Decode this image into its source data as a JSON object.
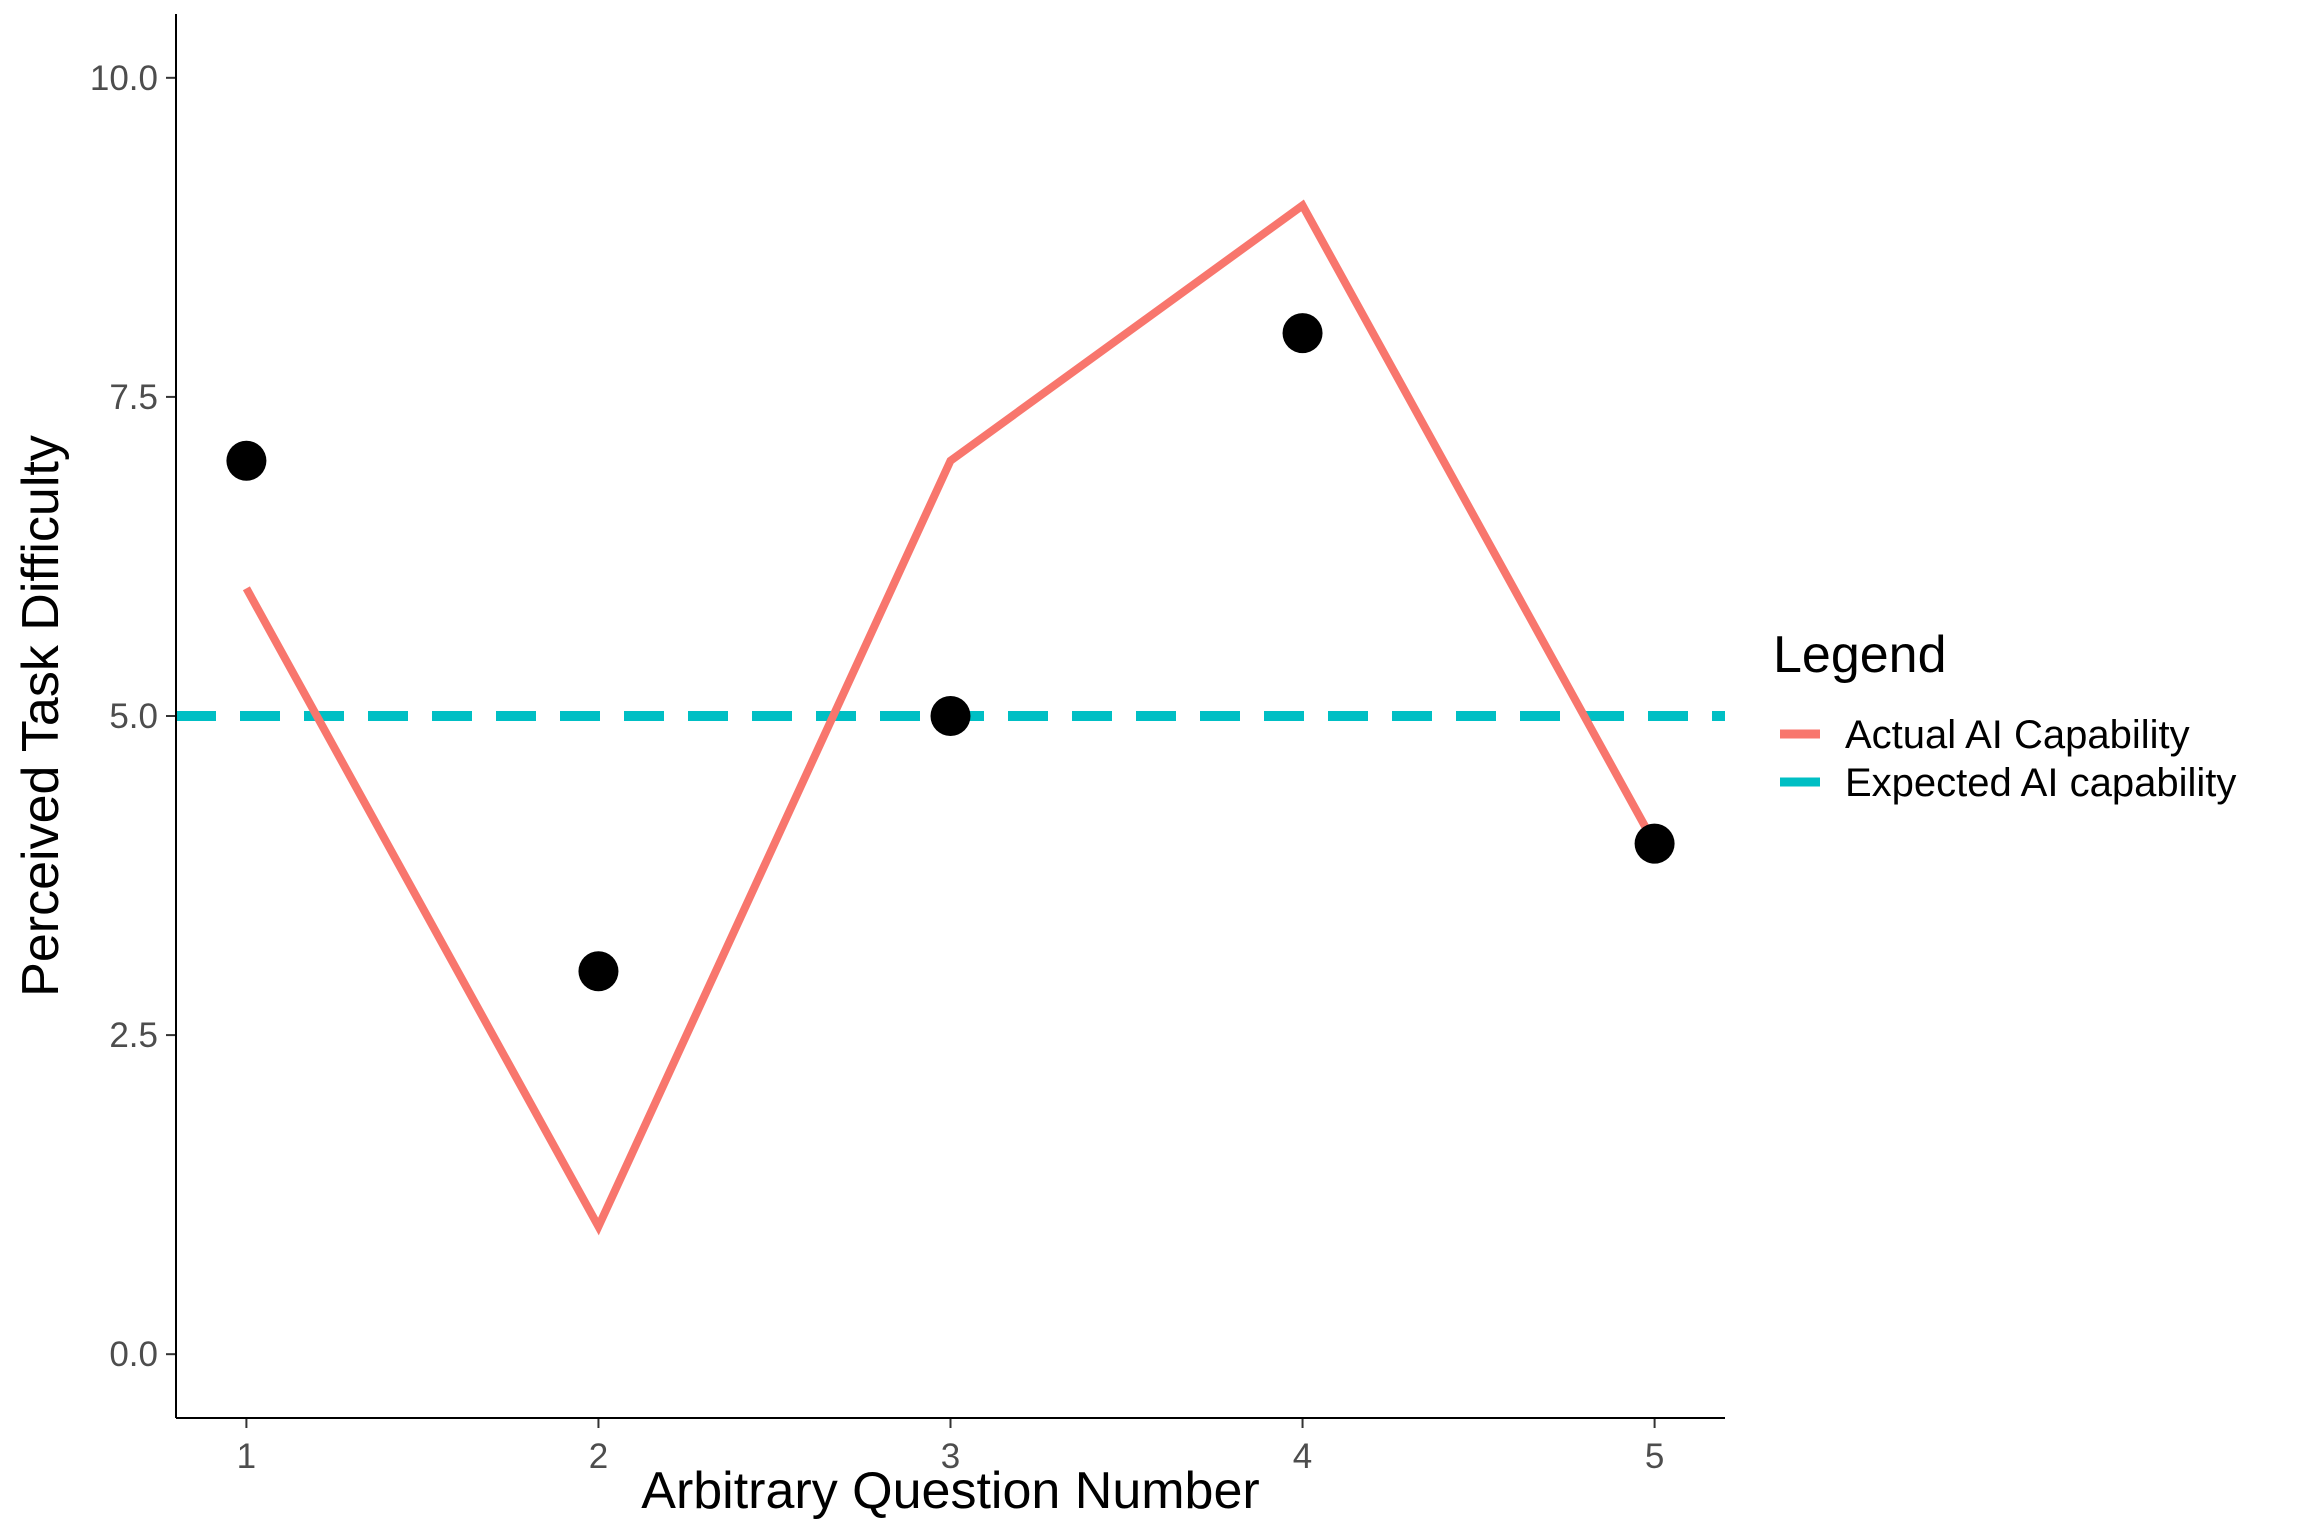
{
  "chart_data": {
    "type": "line",
    "x": [
      1,
      2,
      3,
      4,
      5
    ],
    "series": [
      {
        "name": "Actual AI Capability",
        "kind": "line",
        "values": [
          6,
          1,
          7,
          9,
          4
        ],
        "color": "#F8766D"
      },
      {
        "name": "Expected AI capability",
        "kind": "hline-dashed",
        "value": 5,
        "color": "#00BFC4"
      },
      {
        "kind": "points",
        "values": [
          7,
          3,
          5,
          8,
          4
        ],
        "color": "#000000"
      }
    ],
    "xlabel": "Arbitrary Question Number",
    "ylabel": "Perceived Task Difficulty",
    "xticks": [
      "1",
      "2",
      "3",
      "4",
      "5"
    ],
    "yticks": [
      "0.0",
      "2.5",
      "5.0",
      "7.5",
      "10.0"
    ],
    "ytick_values": [
      0,
      2.5,
      5,
      7.5,
      10
    ],
    "xlim": [
      0.8,
      5.2
    ],
    "ylim": [
      -0.5,
      10.5
    ],
    "grid": false,
    "legend": {
      "title": "Legend",
      "position": "right"
    }
  }
}
